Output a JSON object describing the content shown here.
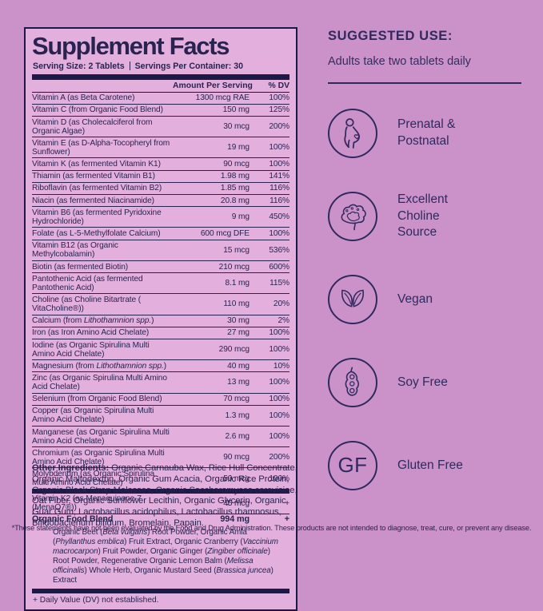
{
  "colors": {
    "page_background": "#ca92c9",
    "panel_background": "#e3b0de",
    "ink_navy": "#29244f",
    "bar_navy": "#1d1947"
  },
  "supplement_facts": {
    "title": "Supplement Facts",
    "serving_size": "Serving Size: 2 Tablets",
    "servings_per_container": "Servings Per Container: 30",
    "col_amount": "Amount Per Serving",
    "col_dv": "% DV",
    "rows": [
      {
        "name": "Vitamin A (as Beta Carotene)",
        "amount": "1300 mcg RAE",
        "dv": "100%"
      },
      {
        "name": "Vitamin C (from Organic Food Blend)",
        "amount": "150 mg",
        "dv": "125%"
      },
      {
        "name": "Vitamin D (as Cholecalciferol from Organic Algae)",
        "amount": "30 mcg",
        "dv": "200%"
      },
      {
        "name": "Vitamin E (as D-Alpha-Tocopheryl from Sunflower)",
        "amount": "19 mg",
        "dv": "100%"
      },
      {
        "name": "Vitamin K (as fermented Vitamin K1)",
        "amount": "90 mcg",
        "dv": "100%"
      },
      {
        "name": "Thiamin (as fermented Vitamin B1)",
        "amount": "1.98 mg",
        "dv": "141%"
      },
      {
        "name": "Riboflavin (as fermented Vitamin B2)",
        "amount": "1.85 mg",
        "dv": "116%"
      },
      {
        "name": "Niacin (as fermented Niacinamide)",
        "amount": "20.8 mg",
        "dv": "116%"
      },
      {
        "name": "Vitamin B6 (as fermented Pyridoxine Hydrochloride)",
        "amount": "9 mg",
        "dv": "450%"
      },
      {
        "name": "Folate (as L-5-Methylfolate Calcium)",
        "amount": "600 mcg DFE",
        "dv": "100%"
      },
      {
        "name": "Vitamin B12 (as Organic Methylcobalamin)",
        "amount": "15 mcg",
        "dv": "536%"
      },
      {
        "name": "Biotin (as fermented Biotin)",
        "amount": "210 mcg",
        "dv": "600%"
      },
      {
        "name": "Pantothenic Acid (as fermented Pantothenic Acid)",
        "amount": "8.1 mg",
        "dv": "115%"
      },
      {
        "name": "Choline (as Choline Bitartrate ( VitaCholine®))",
        "amount": "110 mg",
        "dv": "20%"
      },
      {
        "name": "Calcium (from *Lithothamnion spp.*)",
        "amount": "30 mg",
        "dv": "2%"
      },
      {
        "name": "Iron (as Iron Amino Acid Chelate)",
        "amount": "27 mg",
        "dv": "100%"
      },
      {
        "name": "Iodine (as Organic Spirulina Multi Amino Acid Chelate)",
        "amount": "290 mcg",
        "dv": "100%"
      },
      {
        "name": "Magnesium (from *Lithothamnion spp.*)",
        "amount": "40 mg",
        "dv": "10%"
      },
      {
        "name": "Zinc (as Organic Spirulina Multi Amino Acid Chelate)",
        "amount": "13 mg",
        "dv": "100%"
      },
      {
        "name": "Selenium (from Organic Food Blend)",
        "amount": "70 mcg",
        "dv": "100%"
      },
      {
        "name": "Copper (as Organic Spirulina Multi Amino Acid Chelate)",
        "amount": "1.3 mg",
        "dv": "100%"
      },
      {
        "name": "Manganese (as Organic Spirulina Multi Amino Acid Chelate)",
        "amount": "2.6 mg",
        "dv": "100%"
      },
      {
        "name": "Chromium (as Organic Spirulina Multi Amino Acid Chelate)",
        "amount": "90 mcg",
        "dv": "200%"
      },
      {
        "name": "Molybdenum (as Organic Spirulina Multi Amino Acid Chelate)",
        "amount": "50 mcg",
        "dv": "100%"
      }
    ],
    "extra_rows": [
      {
        "name": "Vitamin K2 (as Menaquinone-7 (MenaQ7®))",
        "amount": "45 mcg",
        "dv": "+",
        "bold": false
      },
      {
        "name": "Organic Food Blend",
        "amount": "994 mg",
        "dv": "+",
        "bold": true
      }
    ],
    "blend_description": "Organic Beet (*Beta vulgaris*) Root Powder, Organic Amla (*Phyllanthus emblica*) Fruit Extract, Organic Cranberry (*Vaccinium macrocarpon*) Fruit Powder, Organic Ginger (*Zingiber officinale*) Root Powder, Regenerative Organic Lemon Balm (*Melissa officinalis*) Whole Herb, Organic Mustard Seed (*Brassica juncea*) Extract",
    "footnote": "+ Daily Value (DV) not established."
  },
  "other_ingredients": {
    "label": "Other Ingredients:",
    "text": " Organic Carnauba Wax, Rice Hull Concentrate, Organic Maltodextrin, Organic Gum Acacia, Organic Rice Protein, Organic Black Strap Molasses, Organic Saccharomyces cerevisiae, Oat Fiber, Organic Sunflower Lecithin, Organic Glycerin, Organic Guar Gum, Lactobacillus acidophilus, Lactobacillus rhamnosus, Bifidobacterium bifidum, Bromelain, Papain."
  },
  "suggested_use": {
    "title": "SUGGESTED USE:",
    "subtext": "Adults take two tablets daily"
  },
  "features": [
    {
      "icon": "pregnant-woman-icon",
      "label": "Prenatal &\nPostnatal"
    },
    {
      "icon": "brain-icon",
      "label": "Excellent\nCholine\nSource"
    },
    {
      "icon": "leaves-icon",
      "label": "Vegan"
    },
    {
      "icon": "soybean-pod-icon",
      "label": "Soy Free"
    },
    {
      "icon": "gf-letters-icon",
      "label": "Gluten Free",
      "icon_text": "GF"
    }
  ],
  "disclaimer": "*These statements have not been evaluated by the Food and Drug Administration. These products are not intended to diagnose, treat, cure, or prevent any disease."
}
